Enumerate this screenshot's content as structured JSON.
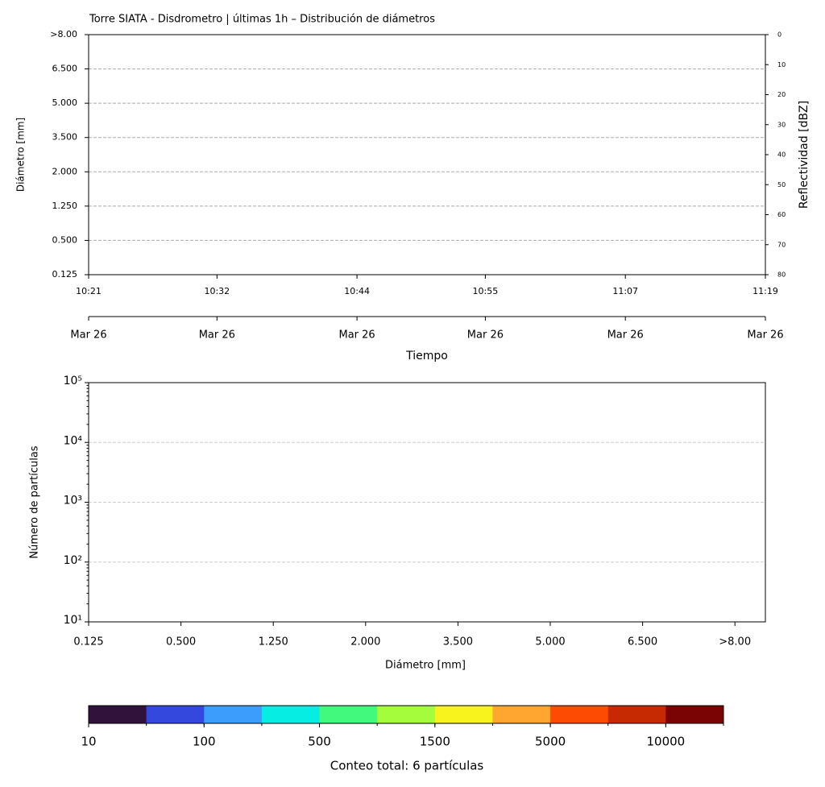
{
  "chart_data": [
    {
      "type": "heatmap",
      "title": "Torre SIATA - Disdrometro | últimas 1h – Distribución de diámetros",
      "y_categories": [
        "0.125",
        "0.500",
        "1.250",
        "2.000",
        "3.500",
        "5.000",
        "6.500",
        ">8.00"
      ],
      "ylabel": "Diámetro [mm]",
      "xlim": [
        "10:21",
        "11:19"
      ],
      "xticks": [
        "10:21",
        "10:32",
        "10:44",
        "10:55",
        "11:07",
        "11:19"
      ],
      "xticks2": [
        "Mar 26",
        "Mar 26",
        "Mar 26",
        "Mar 26",
        "Mar 26",
        "Mar 26"
      ],
      "xlabel": "Tiempo",
      "y2label": "Reflectividad [dBZ]",
      "y2lim": [
        80,
        0
      ],
      "y2ticks": [
        0,
        10,
        20,
        30,
        40,
        50,
        60,
        70,
        80
      ],
      "grid": true
    },
    {
      "type": "histogram",
      "categories": [
        "0.125",
        "0.500",
        "1.250",
        "2.000",
        "3.500",
        "5.000",
        "6.500",
        ">8.00"
      ],
      "xlabel": "Diámetro [mm]",
      "ylabel": "Número de partículas",
      "log_y": true,
      "ylim": [
        10,
        100000
      ],
      "yticks": [
        {
          "value": 10,
          "label": "10¹"
        },
        {
          "value": 100,
          "label": "10²"
        },
        {
          "value": 1000,
          "label": "10³"
        },
        {
          "value": 10000,
          "label": "10⁴"
        },
        {
          "value": 100000,
          "label": "10⁵"
        }
      ],
      "grid": true
    },
    {
      "type": "colorbar",
      "colors": [
        "#30123b",
        "#3548dd",
        "#3d9dfd",
        "#06ede4",
        "#43f97d",
        "#a4fc3c",
        "#f8f21d",
        "#fea630",
        "#fe4b04",
        "#c62a02",
        "#7a0403"
      ],
      "ticks": [
        10,
        100,
        500,
        1500,
        5000,
        10000
      ],
      "label": "Conteo total: 6 partículas"
    }
  ]
}
